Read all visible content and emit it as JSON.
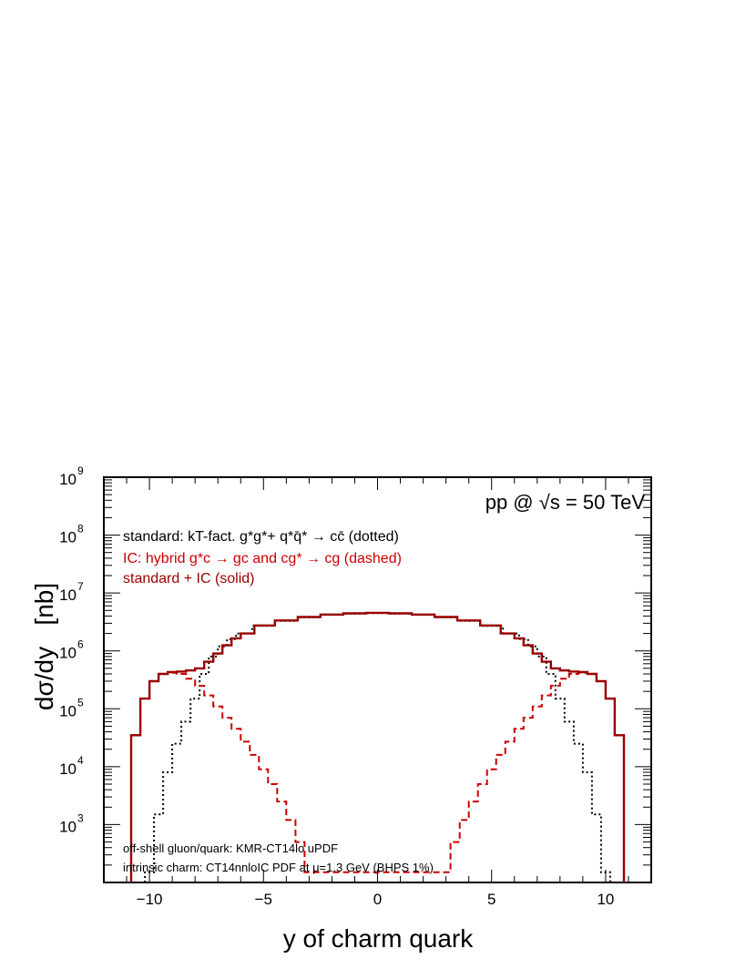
{
  "chart_data": {
    "type": "line",
    "plot_type": "step-histogram",
    "xlabel": "y of charm quark",
    "ylabel": "dσ/dy   [nb]",
    "xlim": [
      -12,
      12
    ],
    "ylim": [
      100,
      1000000000
    ],
    "y_scale": "log",
    "x_ticks": [
      {
        "value": -10,
        "label": "−10"
      },
      {
        "value": -5,
        "label": "−5"
      },
      {
        "value": 0,
        "label": "0"
      },
      {
        "value": 5,
        "label": "5"
      },
      {
        "value": 10,
        "label": "10"
      }
    ],
    "y_ticks": [
      {
        "value": 1000,
        "base": "10",
        "exp": "3"
      },
      {
        "value": 10000,
        "base": "10",
        "exp": "4"
      },
      {
        "value": 100000,
        "base": "10",
        "exp": "5"
      },
      {
        "value": 1000000,
        "base": "10",
        "exp": "6"
      },
      {
        "value": 10000000,
        "base": "10",
        "exp": "7"
      },
      {
        "value": 100000000,
        "base": "10",
        "exp": "8"
      },
      {
        "value": 1000000000,
        "base": "10",
        "exp": "9"
      }
    ],
    "corner_label": "pp @ √s = 50 TeV",
    "legend": [
      {
        "text": "standard: kT-fact. g*g*+ q*q̄* → cc̄ (dotted)",
        "color": "#000000"
      },
      {
        "text": "IC: hybrid g*c → gc and cg* → cg  (dashed)",
        "color": "#cc0000"
      },
      {
        "text": "standard + IC (solid)",
        "color": "#990000"
      }
    ],
    "notes": [
      "off-shell gluon/quark: KMR-CT14lo uPDF",
      "intrinsic charm: CT14nnloIC PDF at μ=1.3 GeV (BHPS 1%)"
    ],
    "series": [
      {
        "role": "dotted",
        "color": "#000000",
        "style": "dotted",
        "x": [
          -10.0,
          -9.6,
          -9.2,
          -8.8,
          -8.4,
          -8.0,
          -7.6,
          -7.2,
          -6.8,
          -6.4,
          -6.0,
          -5.0,
          -4.0,
          -3.0,
          -2.0,
          -1.0,
          0.0,
          1.0,
          2.0,
          3.0,
          4.0,
          5.0,
          6.0,
          6.4,
          6.8,
          7.2,
          7.6,
          8.0,
          8.4,
          8.8,
          9.2,
          9.6,
          10.0
        ],
        "y": [
          150,
          1500,
          8000,
          25000,
          60000,
          150000,
          400000,
          800000,
          1200000,
          1600000,
          2000000,
          2700000,
          3300000,
          3800000,
          4200000,
          4400000,
          4500000,
          4400000,
          4200000,
          3800000,
          3300000,
          2700000,
          2000000,
          1600000,
          1200000,
          800000,
          400000,
          150000,
          60000,
          25000,
          8000,
          1500,
          150
        ]
      },
      {
        "role": "dashed",
        "color": "#cc0000",
        "style": "dashed",
        "x": [
          -10.6,
          -10.2,
          -9.8,
          -9.4,
          -9.0,
          -8.6,
          -8.2,
          -7.8,
          -7.4,
          -7.0,
          -6.6,
          -6.2,
          -5.8,
          -5.4,
          -5.0,
          -4.6,
          -4.2,
          -3.8,
          -3.4,
          -3.0,
          3.0,
          3.4,
          3.8,
          4.2,
          4.6,
          5.0,
          5.4,
          5.8,
          6.2,
          6.6,
          7.0,
          7.4,
          7.8,
          8.2,
          8.6,
          9.0,
          9.4,
          9.8,
          10.2,
          10.6
        ],
        "y": [
          35000,
          150000,
          300000,
          400000,
          420000,
          400000,
          330000,
          250000,
          170000,
          110000,
          70000,
          45000,
          27000,
          16000,
          9000,
          5000,
          2500,
          1200,
          500,
          150,
          150,
          500,
          1200,
          2500,
          5000,
          9000,
          16000,
          27000,
          45000,
          70000,
          110000,
          170000,
          250000,
          330000,
          400000,
          420000,
          400000,
          300000,
          150000,
          35000
        ]
      },
      {
        "role": "solid",
        "color": "#990000",
        "style": "solid",
        "x": [
          -10.6,
          -10.2,
          -9.8,
          -9.4,
          -9.0,
          -8.6,
          -8.2,
          -7.8,
          -7.4,
          -7.0,
          -6.6,
          -6.2,
          -5.8,
          -5.0,
          -4.0,
          -3.0,
          -2.0,
          -1.0,
          0.0,
          1.0,
          2.0,
          3.0,
          4.0,
          5.0,
          5.8,
          6.2,
          6.6,
          7.0,
          7.4,
          7.8,
          8.2,
          8.6,
          9.0,
          9.4,
          9.8,
          10.2,
          10.6
        ],
        "y": [
          35000,
          150000,
          300000,
          400000,
          430000,
          440000,
          460000,
          500000,
          650000,
          900000,
          1250000,
          1650000,
          2000000,
          2750000,
          3350000,
          3850000,
          4250000,
          4450000,
          4550000,
          4450000,
          4250000,
          3850000,
          3350000,
          2750000,
          2000000,
          1650000,
          1250000,
          900000,
          650000,
          500000,
          460000,
          440000,
          430000,
          400000,
          300000,
          150000,
          35000
        ]
      }
    ]
  }
}
